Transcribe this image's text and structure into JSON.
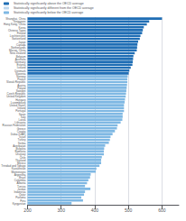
{
  "chart_data": {
    "type": "bar",
    "orientation": "horizontal",
    "categories": [
      "Shanghai, China",
      "Singapore",
      "Hong Kong, China",
      "Korea",
      "Chinese Taipei",
      "Finland",
      "Liechtenstein",
      "Switzerland",
      "Japan",
      "Canada",
      "Netherlands",
      "Macao, China",
      "New Zealand",
      "Belgium",
      "Australia",
      "Germany",
      "Estonia",
      "Iceland",
      "Denmark",
      "Slovenia",
      "Norway",
      "France",
      "Slovak Republic",
      "Austria",
      "Poland",
      "Sweden",
      "Czech Republic",
      "United Kingdom",
      "Hungary",
      "Luxembourg",
      "United States",
      "Ireland",
      "Portugal",
      "Spain",
      "Italy",
      "Latvia",
      "Lithuania",
      "Russian Federation",
      "Greece",
      "Croatia",
      "Dubai (UAE)",
      "Israel",
      "Turkey",
      "Serbia",
      "Azerbaijan",
      "Bulgaria",
      "Romania",
      "Uruguay",
      "Chile",
      "Thailand",
      "Mexico",
      "Trinidad and Tobago",
      "Kazakhstan",
      "Montenegro",
      "Argentina",
      "Brazil",
      "Colombia",
      "Albania",
      "Tunisia",
      "Jordan",
      "Indonesia",
      "Qatar",
      "Panama",
      "Peru",
      "Kyrgyzstan"
    ],
    "series": [
      {
        "name": "Statistically significantly above the OECD average",
        "color": "#1f6eb5",
        "values": [
          600,
          562,
          555,
          546,
          543,
          541,
          536,
          534,
          529,
          527,
          526,
          525,
          519,
          515,
          514,
          513,
          512,
          507,
          503,
          501,
          null,
          null,
          null,
          null,
          null,
          null,
          null,
          null,
          null,
          null,
          null,
          null,
          null,
          null,
          null,
          null,
          null,
          null,
          null,
          null,
          null,
          null,
          null,
          null,
          null,
          null,
          null,
          null,
          null,
          null,
          null,
          null,
          null,
          null,
          null,
          null,
          null,
          null,
          null,
          null,
          null,
          null,
          null,
          null,
          null
        ]
      },
      {
        "name": "Statistically significantly different from the OECD average",
        "color": "#bdd7ee",
        "values": [
          null,
          null,
          null,
          null,
          null,
          null,
          null,
          null,
          null,
          null,
          null,
          null,
          null,
          null,
          null,
          null,
          null,
          null,
          null,
          null,
          null,
          null,
          null,
          null,
          null,
          null,
          null,
          null,
          null,
          null,
          null,
          null,
          null,
          null,
          null,
          null,
          null,
          null,
          null,
          null,
          null,
          null,
          null,
          null,
          null,
          null,
          null,
          null,
          null,
          null,
          null,
          null,
          null,
          null,
          null,
          null,
          null,
          null,
          null,
          null,
          null,
          null,
          null,
          null,
          null
        ]
      },
      {
        "name": "Statistically significantly below the OECD average",
        "color": "#7fb8e3",
        "values": [
          null,
          null,
          null,
          null,
          null,
          null,
          null,
          null,
          null,
          null,
          null,
          null,
          null,
          null,
          null,
          null,
          null,
          null,
          null,
          null,
          498,
          497,
          497,
          496,
          495,
          494,
          493,
          492,
          490,
          489,
          487,
          487,
          487,
          483,
          483,
          482,
          477,
          468,
          466,
          460,
          453,
          447,
          445,
          442,
          431,
          428,
          427,
          427,
          421,
          419,
          419,
          414,
          405,
          403,
          388,
          386,
          381,
          377,
          371,
          387,
          371,
          368,
          360,
          365,
          331
        ]
      }
    ],
    "xlim": [
      200,
      650
    ],
    "xticks": [
      200,
      300,
      400,
      500,
      600
    ],
    "grid": true
  }
}
